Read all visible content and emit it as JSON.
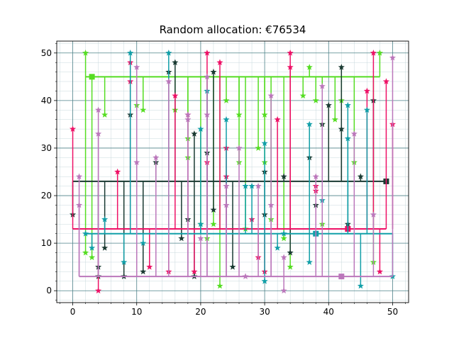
{
  "chart_data": {
    "type": "scatter",
    "title": "Random allocation: €76534",
    "xlabel": "",
    "ylabel": "",
    "xlim": [
      -2.5,
      52.5
    ],
    "ylim": [
      -2.5,
      52.5
    ],
    "x_ticks": [
      0,
      10,
      20,
      30,
      40,
      50
    ],
    "y_ticks": [
      0,
      10,
      20,
      30,
      40,
      50
    ],
    "grid": "major and minor",
    "legend": "none",
    "series": [
      {
        "color": "#55dd22",
        "hub": [
          3,
          45
        ],
        "trunk_y": 45,
        "trunk_x": [
          2,
          48
        ],
        "points": [
          [
            2,
            50
          ],
          [
            48,
            50
          ],
          [
            2,
            8
          ],
          [
            3,
            7
          ],
          [
            5,
            37
          ],
          [
            10,
            39
          ],
          [
            11,
            38
          ],
          [
            16,
            38
          ],
          [
            18,
            28
          ],
          [
            18,
            32
          ],
          [
            20,
            14
          ],
          [
            21,
            11
          ],
          [
            22,
            14
          ],
          [
            23,
            1
          ],
          [
            24,
            40
          ],
          [
            26,
            37
          ],
          [
            26,
            27
          ],
          [
            27,
            13
          ],
          [
            29,
            30
          ],
          [
            30,
            37
          ],
          [
            30,
            27
          ],
          [
            31,
            15
          ],
          [
            33,
            11
          ],
          [
            34,
            5
          ],
          [
            36,
            41
          ],
          [
            37,
            47
          ],
          [
            38,
            40
          ],
          [
            39,
            14
          ],
          [
            39,
            35
          ],
          [
            41,
            36
          ],
          [
            42,
            40
          ],
          [
            44,
            27
          ],
          [
            47,
            6
          ]
        ]
      },
      {
        "color": "#1a3a32",
        "hub": [
          49,
          23
        ],
        "trunk_y": 23,
        "trunk_x": [
          0,
          49
        ],
        "points": [
          [
            0,
            16
          ],
          [
            4,
            3
          ],
          [
            4,
            5
          ],
          [
            5,
            9
          ],
          [
            8,
            3
          ],
          [
            9,
            37
          ],
          [
            11,
            4
          ],
          [
            13,
            27
          ],
          [
            15,
            46
          ],
          [
            16,
            48
          ],
          [
            17,
            11
          ],
          [
            18,
            15
          ],
          [
            19,
            33
          ],
          [
            19,
            3
          ],
          [
            21,
            29
          ],
          [
            22,
            46
          ],
          [
            22,
            17
          ],
          [
            25,
            5
          ],
          [
            30,
            25
          ],
          [
            30,
            16
          ],
          [
            33,
            24
          ],
          [
            34,
            8
          ],
          [
            37,
            28
          ],
          [
            38,
            18
          ],
          [
            39,
            35
          ],
          [
            40,
            39
          ],
          [
            42,
            47
          ],
          [
            42,
            34
          ],
          [
            43,
            14
          ],
          [
            45,
            24
          ],
          [
            47,
            40
          ]
        ]
      },
      {
        "color": "#ee1166",
        "hub": [
          43,
          13
        ],
        "trunk_y": 13,
        "trunk_x": [
          0,
          49
        ],
        "points": [
          [
            0,
            34
          ],
          [
            4,
            0
          ],
          [
            7,
            25
          ],
          [
            9,
            44
          ],
          [
            9,
            48
          ],
          [
            12,
            5
          ],
          [
            15,
            4
          ],
          [
            16,
            41
          ],
          [
            18,
            37
          ],
          [
            19,
            4
          ],
          [
            21,
            50
          ],
          [
            21,
            27
          ],
          [
            23,
            48
          ],
          [
            24,
            30
          ],
          [
            24,
            24
          ],
          [
            28,
            15
          ],
          [
            29,
            7
          ],
          [
            30,
            4
          ],
          [
            32,
            36
          ],
          [
            34,
            50
          ],
          [
            34,
            47
          ],
          [
            38,
            21
          ],
          [
            38,
            22
          ],
          [
            46,
            42
          ],
          [
            47,
            50
          ],
          [
            48,
            4
          ],
          [
            49,
            44
          ],
          [
            50,
            35
          ]
        ]
      },
      {
        "color": "#119fa8",
        "hub": [
          38,
          12
        ],
        "trunk_y": 12,
        "trunk_x": [
          2,
          50
        ],
        "points": [
          [
            2,
            12
          ],
          [
            3,
            9
          ],
          [
            5,
            15
          ],
          [
            8,
            6
          ],
          [
            9,
            50
          ],
          [
            11,
            10
          ],
          [
            15,
            50
          ],
          [
            20,
            14
          ],
          [
            20,
            34
          ],
          [
            21,
            42
          ],
          [
            24,
            36
          ],
          [
            27,
            22
          ],
          [
            28,
            22
          ],
          [
            30,
            31
          ],
          [
            30,
            2
          ],
          [
            32,
            9
          ],
          [
            33,
            12
          ],
          [
            37,
            6
          ],
          [
            37,
            35
          ],
          [
            39,
            19
          ],
          [
            43,
            32
          ],
          [
            43,
            39
          ],
          [
            45,
            1
          ],
          [
            46,
            38
          ],
          [
            50,
            3
          ]
        ]
      },
      {
        "color": "#bb77bb",
        "hub": [
          42,
          3
        ],
        "trunk_y": 3,
        "trunk_x": [
          1,
          50
        ],
        "points": [
          [
            1,
            24
          ],
          [
            1,
            18
          ],
          [
            4,
            38
          ],
          [
            4,
            33
          ],
          [
            10,
            47
          ],
          [
            10,
            27
          ],
          [
            13,
            28
          ],
          [
            15,
            44
          ],
          [
            18,
            37
          ],
          [
            18,
            36
          ],
          [
            20,
            11
          ],
          [
            21,
            37
          ],
          [
            21,
            45
          ],
          [
            24,
            22
          ],
          [
            24,
            18
          ],
          [
            26,
            30
          ],
          [
            27,
            3
          ],
          [
            29,
            22
          ],
          [
            31,
            41
          ],
          [
            31,
            18
          ],
          [
            33,
            7
          ],
          [
            33,
            0
          ],
          [
            38,
            24
          ],
          [
            39,
            43
          ],
          [
            44,
            33
          ],
          [
            47,
            16
          ],
          [
            50,
            49
          ]
        ]
      }
    ]
  }
}
